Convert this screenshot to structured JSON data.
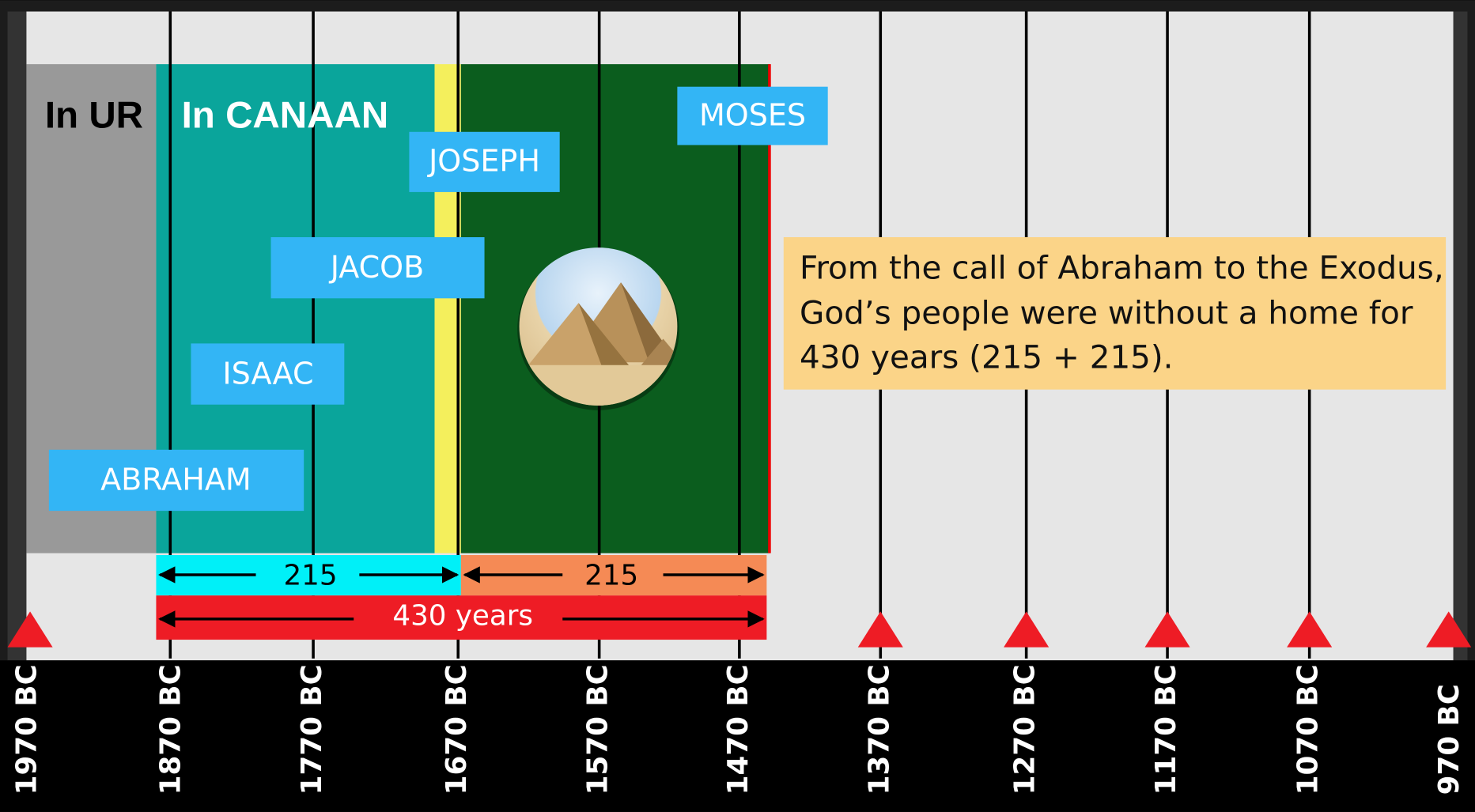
{
  "periods": [
    {
      "label": "In UR"
    },
    {
      "label": "In CANAAN"
    }
  ],
  "people": [
    "MOSES",
    "JOSEPH",
    "JACOB",
    "ISAAC",
    "ABRAHAM"
  ],
  "spans": [
    {
      "label": "215"
    },
    {
      "label": "215"
    },
    {
      "label": "430 years"
    }
  ],
  "note": {
    "lines": [
      "From the call of Abraham to the Exodus,",
      "God’s people were without a home for",
      "430 years (215 + 215)."
    ]
  },
  "timeline": {
    "ticks": [
      "1970 BC",
      "1870 BC",
      "1770 BC",
      "1670 BC",
      "1570 BC",
      "1470 BC",
      "1370 BC",
      "1270 BC",
      "1170 BC",
      "1070 BC",
      "970 BC"
    ]
  }
}
